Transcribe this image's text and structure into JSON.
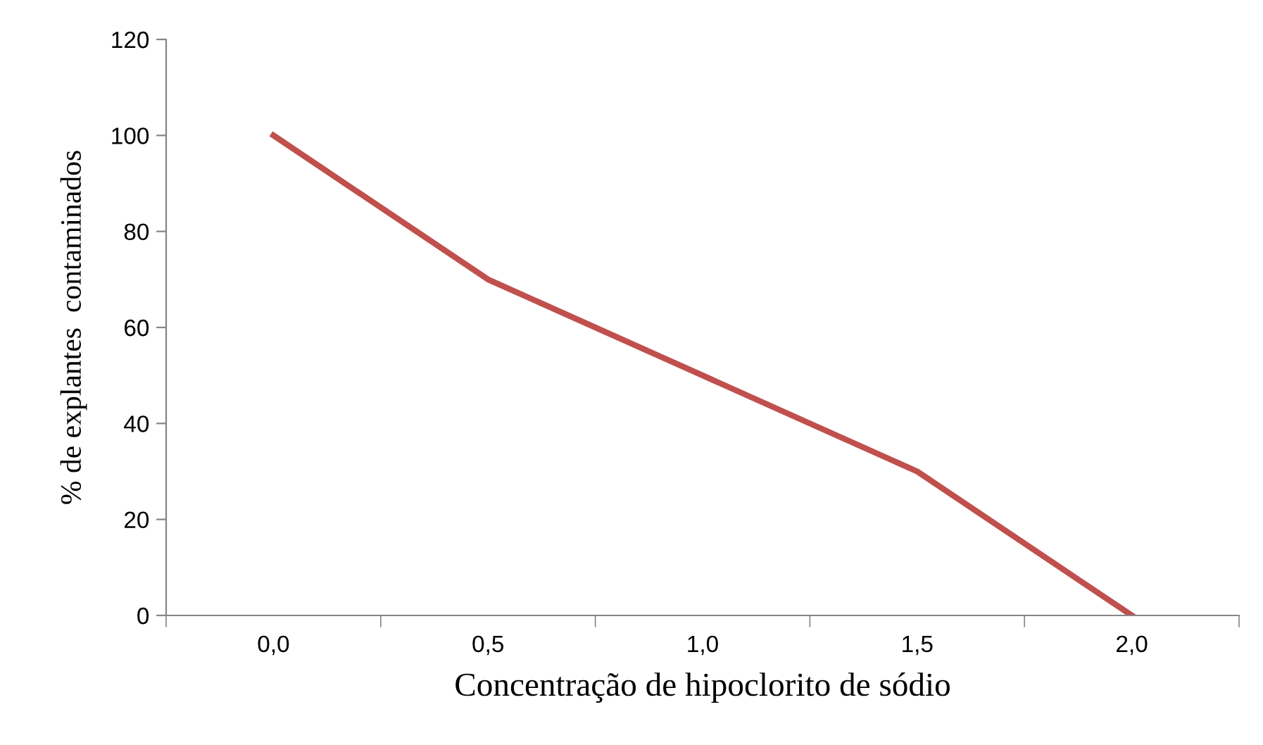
{
  "chart_data": {
    "type": "line",
    "xlabel": "Concentração de hipoclorito de sódio",
    "ylabel": "% de explantes  contaminados",
    "categories": [
      "0,0",
      "0,5",
      "1,0",
      "1,5",
      "2,0"
    ],
    "series": [
      {
        "color": "#c0504d",
        "values": [
          100,
          70,
          50,
          30,
          0
        ]
      }
    ],
    "ylim": [
      0,
      120
    ],
    "yticks": [
      0,
      20,
      40,
      60,
      80,
      100,
      120
    ],
    "grid": false,
    "legend": false,
    "marker": "none",
    "line_style": "solid"
  }
}
